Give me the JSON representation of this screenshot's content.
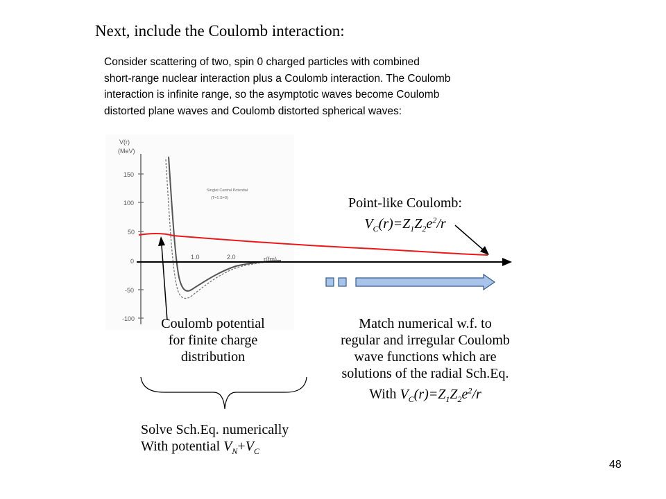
{
  "slide": {
    "title": "Next, include the Coulomb interaction:",
    "intro_lines": [
      "Consider scattering of two, spin 0 charged particles with combined",
      "short-range nuclear interaction plus a Coulomb interaction. The Coulomb",
      "interaction is infinite range, so the asymptotic waves become Coulomb",
      "distorted plane waves and Coulomb distorted spherical waves:"
    ],
    "page_number": "48"
  },
  "scan": {
    "ylabel_line1": "V(r)",
    "ylabel_line2": "(MeV)",
    "yticks": [
      "150",
      "100",
      "50",
      "0",
      "-50",
      "-100"
    ],
    "xticks": [
      "1.0",
      "2.0"
    ],
    "xlabel": "r(fm)",
    "caption_line1": "Singlet Central Potential",
    "caption_line2": "(T=1  S=0)"
  },
  "point_like": {
    "line1": "Point-like Coulomb:",
    "formula": {
      "v": "V",
      "c": "C",
      "r1": "(r)=Z",
      "one": "1",
      "z": "Z",
      "two": "2",
      "e": "e",
      "sq": "2",
      "tail": "/r"
    }
  },
  "finite_charge": {
    "lines": [
      "Coulomb potential",
      "for finite charge",
      "distribution"
    ]
  },
  "match": {
    "lines": [
      "Match numerical w.f. to",
      "regular and irregular Coulomb",
      "wave functions which are",
      "solutions of the radial Sch.Eq."
    ],
    "with": "With ",
    "formula": {
      "v": "V",
      "c": "C",
      "r1": "(r)=Z",
      "one": "1",
      "z": "Z",
      "two": "2",
      "e": "e",
      "sq": "2",
      "tail": "/r"
    }
  },
  "solve": {
    "line1": "Solve Sch.Eq. numerically",
    "line2_prefix": "With potential ",
    "v1": "V",
    "n": "N",
    "plus": "+",
    "v2": "V",
    "c": "C"
  },
  "colors": {
    "coulomb_curve": "#e8191b",
    "arrow_fill": "#a8c4ea",
    "arrow_stroke": "#355a8c",
    "scan_curve": "#555555"
  }
}
